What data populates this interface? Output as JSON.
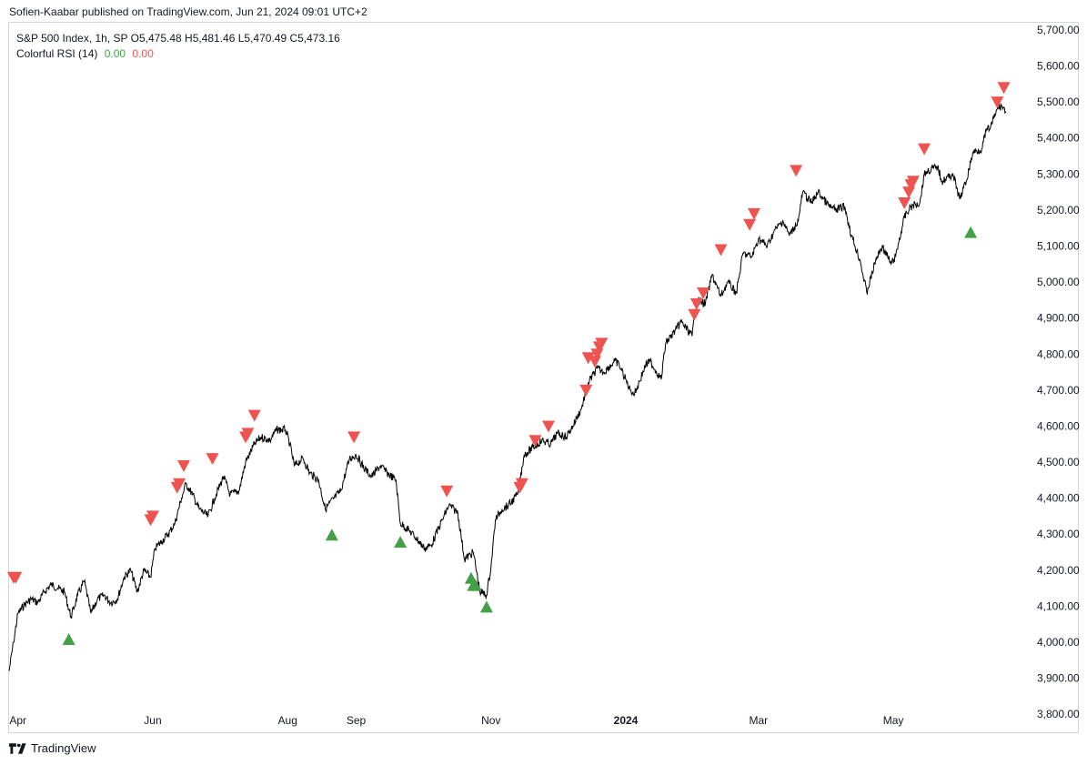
{
  "attribution": "Sofien-Kaabar published on TradingView.com, Jun 21, 2024 09:01 UTC+2",
  "legend": {
    "symbol_line": "S&P 500 Index, 1h, SP  O5,475.48  H5,481.46  L5,470.49  C5,473.16",
    "indicator_name": "Colorful RSI (14)",
    "value_1": "0.00",
    "value_2": "0.00"
  },
  "footer": {
    "brand": "TradingView"
  },
  "colors": {
    "up_signal": "#43a047",
    "down_signal": "#ef5350",
    "price_line": "#000000",
    "axis_text": "#131722"
  },
  "chart_data": {
    "type": "line",
    "title": "S&P 500 Index, 1h, SP",
    "xlabel": "",
    "ylabel": "",
    "ylim": [
      3750,
      5720
    ],
    "x_range": [
      "2023-03-28",
      "2024-06-21"
    ],
    "y_ticks": [
      "5,700.00",
      "5,600.00",
      "5,500.00",
      "5,400.00",
      "5,300.00",
      "5,200.00",
      "5,100.00",
      "5,000.00",
      "4,900.00",
      "4,800.00",
      "4,700.00",
      "4,600.00",
      "4,500.00",
      "4,400.00",
      "4,300.00",
      "4,200.00",
      "4,100.00",
      "4,000.00",
      "3,900.00",
      "3,800.00"
    ],
    "x_ticks": [
      {
        "label": "Apr",
        "date": "2023-04-01"
      },
      {
        "label": "Jun",
        "date": "2023-06-01"
      },
      {
        "label": "Aug",
        "date": "2023-08-01"
      },
      {
        "label": "Sep",
        "date": "2023-09-01"
      },
      {
        "label": "Nov",
        "date": "2023-11-01"
      },
      {
        "label": "2024",
        "date": "2024-01-01"
      },
      {
        "label": "Mar",
        "date": "2024-03-01"
      },
      {
        "label": "May",
        "date": "2024-05-01"
      }
    ],
    "grid": false,
    "series": [
      {
        "type": "line",
        "points": [
          [
            "2023-03-28",
            3920
          ],
          [
            "2023-03-30",
            4000
          ],
          [
            "2023-04-01",
            4080
          ],
          [
            "2023-04-04",
            4105
          ],
          [
            "2023-04-07",
            4120
          ],
          [
            "2023-04-10",
            4110
          ],
          [
            "2023-04-13",
            4140
          ],
          [
            "2023-04-16",
            4160
          ],
          [
            "2023-04-19",
            4150
          ],
          [
            "2023-04-22",
            4140
          ],
          [
            "2023-04-25",
            4070
          ],
          [
            "2023-04-28",
            4130
          ],
          [
            "2023-05-01",
            4170
          ],
          [
            "2023-05-04",
            4080
          ],
          [
            "2023-05-07",
            4120
          ],
          [
            "2023-05-10",
            4130
          ],
          [
            "2023-05-13",
            4110
          ],
          [
            "2023-05-16",
            4120
          ],
          [
            "2023-05-19",
            4180
          ],
          [
            "2023-05-22",
            4200
          ],
          [
            "2023-05-25",
            4140
          ],
          [
            "2023-05-28",
            4200
          ],
          [
            "2023-05-31",
            4180
          ],
          [
            "2023-06-02",
            4260
          ],
          [
            "2023-06-05",
            4280
          ],
          [
            "2023-06-08",
            4300
          ],
          [
            "2023-06-11",
            4330
          ],
          [
            "2023-06-14",
            4400
          ],
          [
            "2023-06-16",
            4440
          ],
          [
            "2023-06-19",
            4410
          ],
          [
            "2023-06-22",
            4370
          ],
          [
            "2023-06-26",
            4350
          ],
          [
            "2023-06-29",
            4400
          ],
          [
            "2023-07-03",
            4460
          ],
          [
            "2023-07-06",
            4410
          ],
          [
            "2023-07-10",
            4420
          ],
          [
            "2023-07-13",
            4500
          ],
          [
            "2023-07-17",
            4550
          ],
          [
            "2023-07-20",
            4570
          ],
          [
            "2023-07-24",
            4560
          ],
          [
            "2023-07-27",
            4590
          ],
          [
            "2023-07-31",
            4590
          ],
          [
            "2023-08-02",
            4550
          ],
          [
            "2023-08-04",
            4490
          ],
          [
            "2023-08-08",
            4510
          ],
          [
            "2023-08-11",
            4470
          ],
          [
            "2023-08-15",
            4450
          ],
          [
            "2023-08-18",
            4370
          ],
          [
            "2023-08-22",
            4400
          ],
          [
            "2023-08-25",
            4420
          ],
          [
            "2023-08-29",
            4510
          ],
          [
            "2023-09-01",
            4520
          ],
          [
            "2023-09-05",
            4480
          ],
          [
            "2023-09-08",
            4460
          ],
          [
            "2023-09-12",
            4490
          ],
          [
            "2023-09-15",
            4470
          ],
          [
            "2023-09-19",
            4450
          ],
          [
            "2023-09-21",
            4330
          ],
          [
            "2023-09-25",
            4310
          ],
          [
            "2023-09-28",
            4290
          ],
          [
            "2023-10-02",
            4260
          ],
          [
            "2023-10-05",
            4270
          ],
          [
            "2023-10-10",
            4340
          ],
          [
            "2023-10-13",
            4380
          ],
          [
            "2023-10-17",
            4360
          ],
          [
            "2023-10-20",
            4230
          ],
          [
            "2023-10-24",
            4250
          ],
          [
            "2023-10-27",
            4140
          ],
          [
            "2023-10-30",
            4130
          ],
          [
            "2023-11-01",
            4210
          ],
          [
            "2023-11-03",
            4340
          ],
          [
            "2023-11-06",
            4370
          ],
          [
            "2023-11-09",
            4380
          ],
          [
            "2023-11-13",
            4410
          ],
          [
            "2023-11-16",
            4520
          ],
          [
            "2023-11-20",
            4540
          ],
          [
            "2023-11-24",
            4560
          ],
          [
            "2023-11-28",
            4550
          ],
          [
            "2023-12-01",
            4580
          ],
          [
            "2023-12-05",
            4570
          ],
          [
            "2023-12-08",
            4600
          ],
          [
            "2023-12-12",
            4650
          ],
          [
            "2023-12-15",
            4720
          ],
          [
            "2023-12-19",
            4760
          ],
          [
            "2023-12-22",
            4750
          ],
          [
            "2023-12-27",
            4780
          ],
          [
            "2023-12-29",
            4770
          ],
          [
            "2024-01-03",
            4700
          ],
          [
            "2024-01-05",
            4690
          ],
          [
            "2024-01-10",
            4770
          ],
          [
            "2024-01-12",
            4780
          ],
          [
            "2024-01-17",
            4730
          ],
          [
            "2024-01-19",
            4830
          ],
          [
            "2024-01-24",
            4870
          ],
          [
            "2024-01-26",
            4890
          ],
          [
            "2024-01-31",
            4850
          ],
          [
            "2024-02-02",
            4950
          ],
          [
            "2024-02-06",
            4940
          ],
          [
            "2024-02-09",
            5020
          ],
          [
            "2024-02-13",
            4960
          ],
          [
            "2024-02-16",
            5000
          ],
          [
            "2024-02-20",
            4970
          ],
          [
            "2024-02-23",
            5080
          ],
          [
            "2024-02-27",
            5070
          ],
          [
            "2024-03-01",
            5120
          ],
          [
            "2024-03-05",
            5100
          ],
          [
            "2024-03-08",
            5140
          ],
          [
            "2024-03-12",
            5170
          ],
          [
            "2024-03-15",
            5130
          ],
          [
            "2024-03-19",
            5170
          ],
          [
            "2024-03-21",
            5250
          ],
          [
            "2024-03-25",
            5220
          ],
          [
            "2024-03-28",
            5250
          ],
          [
            "2024-04-02",
            5210
          ],
          [
            "2024-04-05",
            5200
          ],
          [
            "2024-04-09",
            5210
          ],
          [
            "2024-04-12",
            5130
          ],
          [
            "2024-04-16",
            5060
          ],
          [
            "2024-04-19",
            4970
          ],
          [
            "2024-04-23",
            5060
          ],
          [
            "2024-04-26",
            5100
          ],
          [
            "2024-04-30",
            5050
          ],
          [
            "2024-05-02",
            5070
          ],
          [
            "2024-05-06",
            5180
          ],
          [
            "2024-05-09",
            5210
          ],
          [
            "2024-05-13",
            5220
          ],
          [
            "2024-05-15",
            5300
          ],
          [
            "2024-05-17",
            5310
          ],
          [
            "2024-05-21",
            5320
          ],
          [
            "2024-05-23",
            5280
          ],
          [
            "2024-05-28",
            5300
          ],
          [
            "2024-05-31",
            5230
          ],
          [
            "2024-06-03",
            5280
          ],
          [
            "2024-06-06",
            5360
          ],
          [
            "2024-06-10",
            5370
          ],
          [
            "2024-06-12",
            5420
          ],
          [
            "2024-06-14",
            5430
          ],
          [
            "2024-06-17",
            5480
          ],
          [
            "2024-06-19",
            5490
          ],
          [
            "2024-06-21",
            5473
          ]
        ]
      }
    ],
    "signals_bearish": [
      [
        "2023-03-30",
        4180
      ],
      [
        "2023-03-31",
        4180
      ],
      [
        "2023-05-31",
        4340
      ],
      [
        "2023-06-01",
        4350
      ],
      [
        "2023-06-12",
        4430
      ],
      [
        "2023-06-13",
        4440
      ],
      [
        "2023-06-15",
        4490
      ],
      [
        "2023-06-28",
        4510
      ],
      [
        "2023-07-13",
        4570
      ],
      [
        "2023-07-14",
        4580
      ],
      [
        "2023-07-17",
        4630
      ],
      [
        "2023-08-31",
        4570
      ],
      [
        "2023-10-12",
        4420
      ],
      [
        "2023-11-14",
        4430
      ],
      [
        "2023-11-15",
        4440
      ],
      [
        "2023-11-21",
        4560
      ],
      [
        "2023-11-27",
        4600
      ],
      [
        "2023-12-14",
        4700
      ],
      [
        "2023-12-15",
        4790
      ],
      [
        "2023-12-18",
        4780
      ],
      [
        "2023-12-19",
        4800
      ],
      [
        "2023-12-20",
        4820
      ],
      [
        "2023-12-21",
        4830
      ],
      [
        "2024-02-01",
        4910
      ],
      [
        "2024-02-02",
        4940
      ],
      [
        "2024-02-05",
        4970
      ],
      [
        "2024-02-13",
        5090
      ],
      [
        "2024-02-26",
        5160
      ],
      [
        "2024-02-28",
        5190
      ],
      [
        "2024-03-18",
        5310
      ],
      [
        "2024-05-06",
        5220
      ],
      [
        "2024-05-08",
        5250
      ],
      [
        "2024-05-09",
        5270
      ],
      [
        "2024-05-10",
        5280
      ],
      [
        "2024-05-15",
        5370
      ],
      [
        "2024-06-17",
        5500
      ],
      [
        "2024-06-20",
        5540
      ]
    ],
    "signals_bullish": [
      [
        "2023-04-24",
        4010
      ],
      [
        "2023-08-21",
        4300
      ],
      [
        "2023-09-21",
        4280
      ],
      [
        "2023-10-23",
        4180
      ],
      [
        "2023-10-24",
        4160
      ],
      [
        "2023-10-25",
        4160
      ],
      [
        "2023-10-30",
        4100
      ],
      [
        "2024-06-05",
        5140
      ]
    ]
  }
}
